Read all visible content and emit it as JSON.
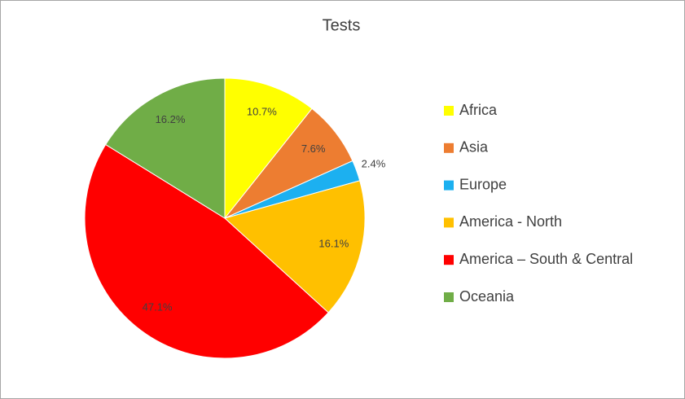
{
  "chart_data": {
    "type": "pie",
    "title": "Tests",
    "categories": [
      "Africa",
      "Asia",
      "Europe",
      "America - North",
      "America – South & Central",
      "Oceania"
    ],
    "values": [
      10.7,
      7.6,
      2.4,
      16.1,
      47.1,
      16.2
    ],
    "value_labels": [
      "10.7%",
      "7.6%",
      "2.4%",
      "16.1%",
      "47.1%",
      "16.2%"
    ],
    "colors": [
      "#ffff00",
      "#ed7d31",
      "#1cb0f0",
      "#ffc000",
      "#ff0000",
      "#70ad47"
    ],
    "legend": "right"
  }
}
